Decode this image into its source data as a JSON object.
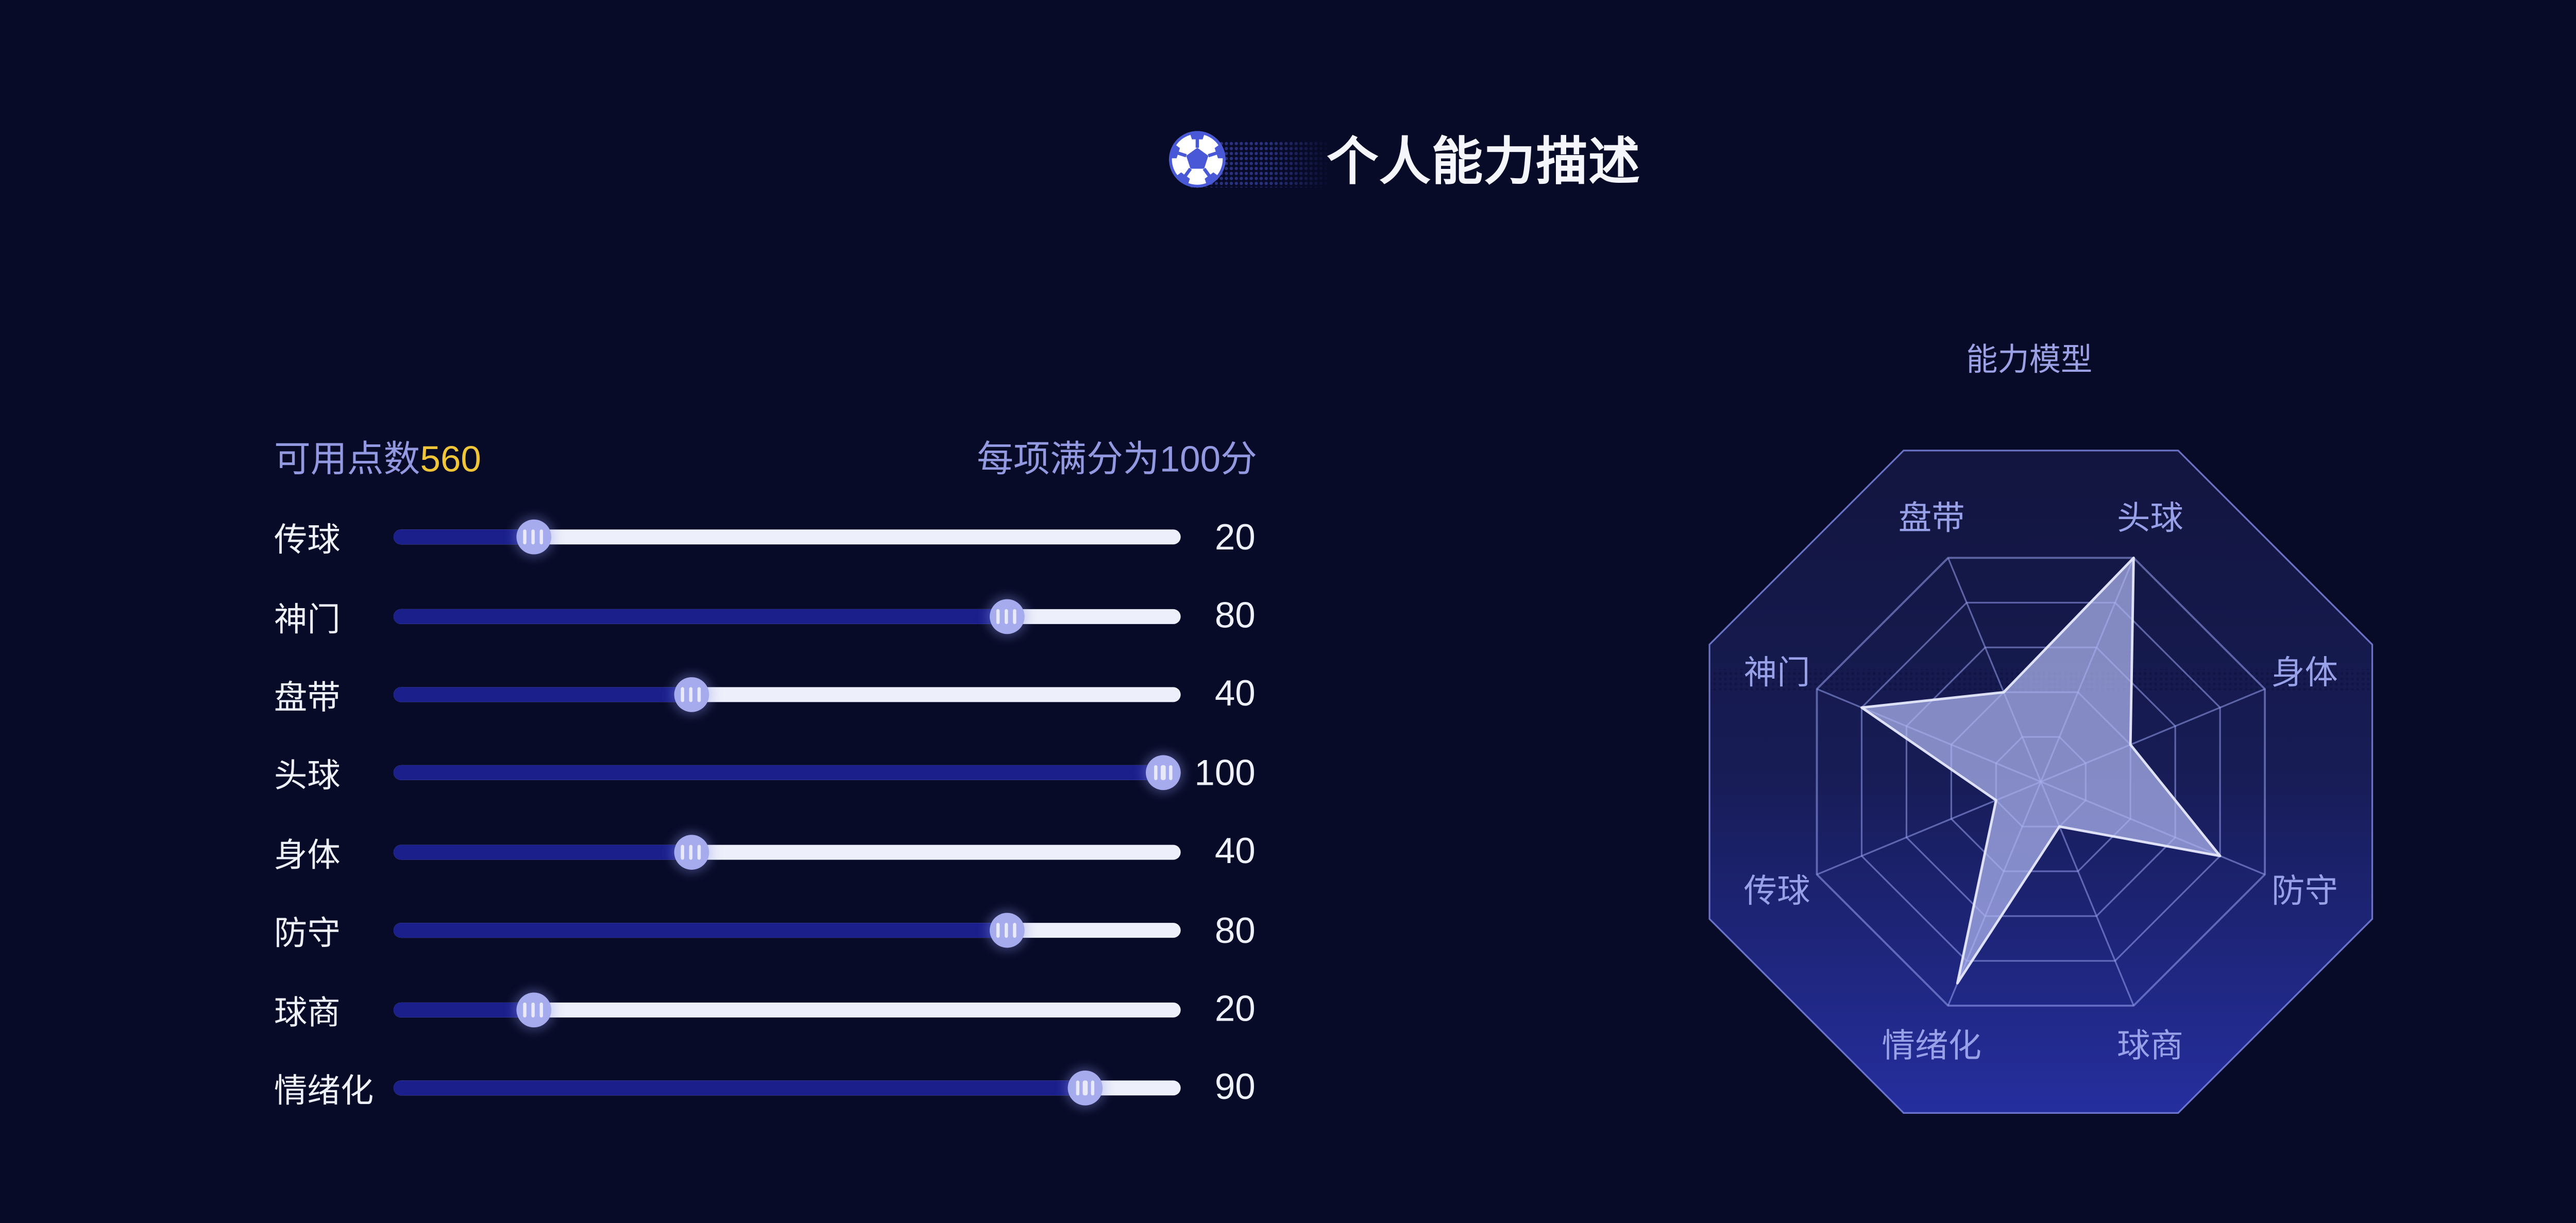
{
  "header": {
    "title": "个人能力描述",
    "icon": "soccer-ball-icon"
  },
  "panel": {
    "available_points_label": "可用点数",
    "available_points_value": "560",
    "max_note": "每项满分为100分",
    "sliders": [
      {
        "label": "传球",
        "value": 20
      },
      {
        "label": "神门",
        "value": 80
      },
      {
        "label": "盘带",
        "value": 40
      },
      {
        "label": "头球",
        "value": 100
      },
      {
        "label": "身体",
        "value": 40
      },
      {
        "label": "防守",
        "value": 80
      },
      {
        "label": "球商",
        "value": 20
      },
      {
        "label": "情绪化",
        "value": 90
      }
    ]
  },
  "chart_data": {
    "type": "radar",
    "title": "能力模型",
    "indicators": [
      "头球",
      "身体",
      "防守",
      "球商",
      "情绪化",
      "传球",
      "神门",
      "盘带"
    ],
    "values": [
      100,
      40,
      80,
      20,
      90,
      20,
      80,
      40
    ],
    "axis_range": [
      0,
      100
    ],
    "levels": 5,
    "shape": "octagon",
    "legend_position": "none",
    "grid": true
  },
  "colors": {
    "background": "#080b28",
    "accent_gold": "#f0c537",
    "purple_text": "#9399e0",
    "slider_fill": "#1a1f8c",
    "slider_rest": "#edeffb",
    "thumb": "#a6abee",
    "ball_blue": "#4858d6",
    "radar_label": "#98a0e8",
    "radar_grid_line": "rgba(152,161,238,0.55)",
    "radar_outer_stroke": "rgba(122,132,222,0.85)",
    "radar_gradient_top": "#12153e",
    "radar_gradient_mid": "#171c55",
    "radar_gradient_bottom": "#252e9e",
    "star_fill": "rgba(175,181,240,0.72)",
    "star_stroke": "rgba(230,233,252,0.95)"
  }
}
